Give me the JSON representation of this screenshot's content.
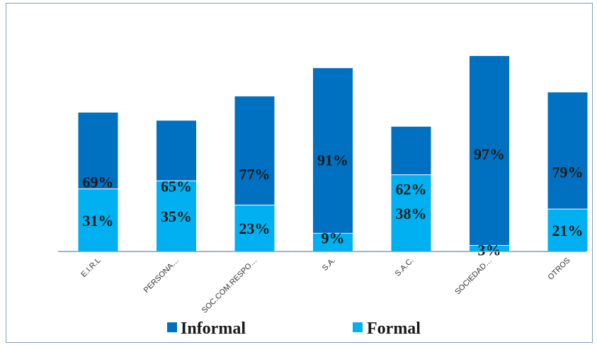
{
  "chart_data": {
    "type": "bar",
    "stacked": true,
    "categories": [
      "E.I.R.L",
      "PERSONA…",
      "SOC.COM.RESPO…",
      "S.A.",
      "S.A.C.",
      "SOCIEDAD…",
      "OTROS"
    ],
    "series": [
      {
        "name": "Informal",
        "color": "#0070c0",
        "values": [
          69,
          65,
          77,
          91,
          62,
          97,
          79
        ],
        "labels": [
          "69%",
          "65%",
          "77%",
          "91%",
          "62%",
          "97%",
          "79%"
        ]
      },
      {
        "name": "Formal",
        "color": "#00b0f0",
        "values": [
          31,
          35,
          23,
          9,
          38,
          3,
          21
        ],
        "labels": [
          "31%",
          "35%",
          "23%",
          "9%",
          "38%",
          "3%",
          "21%"
        ]
      }
    ],
    "ylim": [
      0,
      100
    ],
    "title": "",
    "xlabel": "",
    "ylabel": "",
    "grid": false,
    "legend_position": "bottom"
  }
}
